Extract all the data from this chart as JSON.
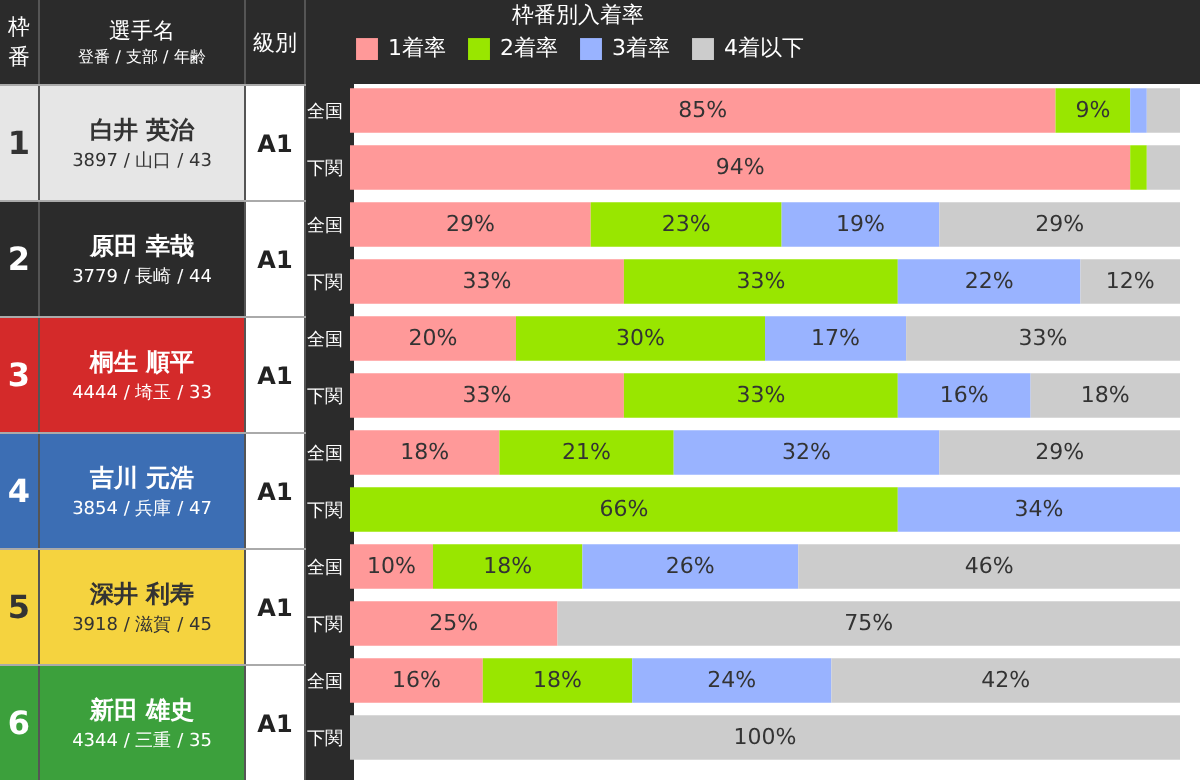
{
  "chart_data": {
    "type": "bar",
    "orientation": "horizontal",
    "stacked": true,
    "legend": "top",
    "legend_title": "枠番別入着率",
    "categories": [
      "全国",
      "下関",
      "全国",
      "下関",
      "全国",
      "下関",
      "全国",
      "下関",
      "全国",
      "下関",
      "全国",
      "下関"
    ],
    "series": [
      {
        "name": "1着率",
        "color": "#ff9999",
        "values": [
          85,
          94,
          29,
          33,
          20,
          33,
          18,
          0,
          10,
          25,
          16,
          0
        ],
        "value_labels": [
          "85%",
          "94%",
          "29%",
          "33%",
          "20%",
          "33%",
          "18%",
          null,
          "10%",
          "25%",
          "16%",
          null
        ]
      },
      {
        "name": "2着率",
        "color": "#99e600",
        "values": [
          9,
          2,
          23,
          33,
          30,
          33,
          21,
          66,
          18,
          0,
          18,
          0
        ],
        "value_labels": [
          "9%",
          null,
          "23%",
          "33%",
          "30%",
          "33%",
          "21%",
          "66%",
          "18%",
          null,
          "18%",
          null
        ]
      },
      {
        "name": "3着率",
        "color": "#99b3ff",
        "values": [
          2,
          0,
          19,
          22,
          17,
          16,
          32,
          34,
          26,
          0,
          24,
          0
        ],
        "value_labels": [
          null,
          null,
          "19%",
          "22%",
          "17%",
          "16%",
          "32%",
          "34%",
          "26%",
          null,
          "24%",
          null
        ]
      },
      {
        "name": "4着以下",
        "color": "#cccccc",
        "values": [
          4,
          4,
          29,
          12,
          33,
          18,
          29,
          0,
          46,
          75,
          42,
          100
        ],
        "value_labels": [
          null,
          null,
          "29%",
          "12%",
          "33%",
          "18%",
          "29%",
          null,
          "46%",
          "75%",
          "42%",
          "100%"
        ]
      }
    ],
    "annotations": [
      "枠番",
      "選手名",
      "登番 / 支部 / 年齢",
      "級別",
      "1",
      "白井 英治",
      "3897 / 山口 / 43",
      "A1",
      "2",
      "原田 幸哉",
      "3779 / 長崎 / 44",
      "A1",
      "3",
      "桐生 順平",
      "4444 / 埼玉 / 33",
      "A1",
      "4",
      "吉川 元浩",
      "3854 / 兵庫 / 47",
      "A1",
      "5",
      "深井 利寿",
      "3918 / 滋賀 / 45",
      "A1",
      "6",
      "新田 雄史",
      "4344 / 三重 / 35",
      "A1"
    ]
  }
}
